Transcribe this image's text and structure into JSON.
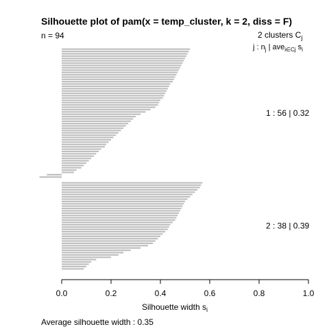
{
  "chart_data": {
    "type": "bar",
    "orientation": "horizontal",
    "title": "Silhouette plot of pam(x = temp_cluster, k = 2, diss = F)",
    "n_label": "n = 94",
    "legend_header": {
      "clusters": "2  clusters  C",
      "clusters_sub": "j",
      "line2_prefix": "j :  n",
      "line2_sub1": "j",
      "line2_mid": " | ave",
      "line2_sub2": "i∈Cj",
      "line2_suffix": "  s",
      "line2_sub3": "i"
    },
    "xlabel": "Silhouette width s",
    "xlabel_sub": "i",
    "xlim": [
      0,
      1
    ],
    "x_ticks": [
      "0.0",
      "0.2",
      "0.4",
      "0.6",
      "0.8",
      "1.0"
    ],
    "bar_color": "#bebebe",
    "footer": "Average silhouette width :  0.35",
    "clusters": [
      {
        "label": "1 :   56  |  0.32",
        "n": 56,
        "avg": 0.32,
        "values": [
          0.52,
          0.515,
          0.51,
          0.505,
          0.5,
          0.495,
          0.49,
          0.485,
          0.48,
          0.475,
          0.47,
          0.465,
          0.46,
          0.455,
          0.45,
          0.44,
          0.435,
          0.43,
          0.425,
          0.42,
          0.415,
          0.41,
          0.4,
          0.395,
          0.39,
          0.38,
          0.36,
          0.34,
          0.32,
          0.3,
          0.29,
          0.28,
          0.27,
          0.26,
          0.25,
          0.24,
          0.23,
          0.22,
          0.21,
          0.2,
          0.19,
          0.18,
          0.175,
          0.16,
          0.15,
          0.14,
          0.13,
          0.12,
          0.11,
          0.1,
          0.09,
          0.08,
          0.06,
          0.05,
          -0.06,
          -0.09
        ]
      },
      {
        "label": "2 :   38  |  0.39",
        "n": 38,
        "avg": 0.39,
        "values": [
          0.57,
          0.565,
          0.56,
          0.55,
          0.54,
          0.53,
          0.52,
          0.51,
          0.5,
          0.495,
          0.49,
          0.485,
          0.48,
          0.475,
          0.47,
          0.465,
          0.46,
          0.45,
          0.44,
          0.435,
          0.43,
          0.42,
          0.41,
          0.4,
          0.39,
          0.38,
          0.37,
          0.35,
          0.32,
          0.28,
          0.25,
          0.23,
          0.2,
          0.14,
          0.12,
          0.11,
          0.1,
          0.09
        ]
      }
    ]
  }
}
